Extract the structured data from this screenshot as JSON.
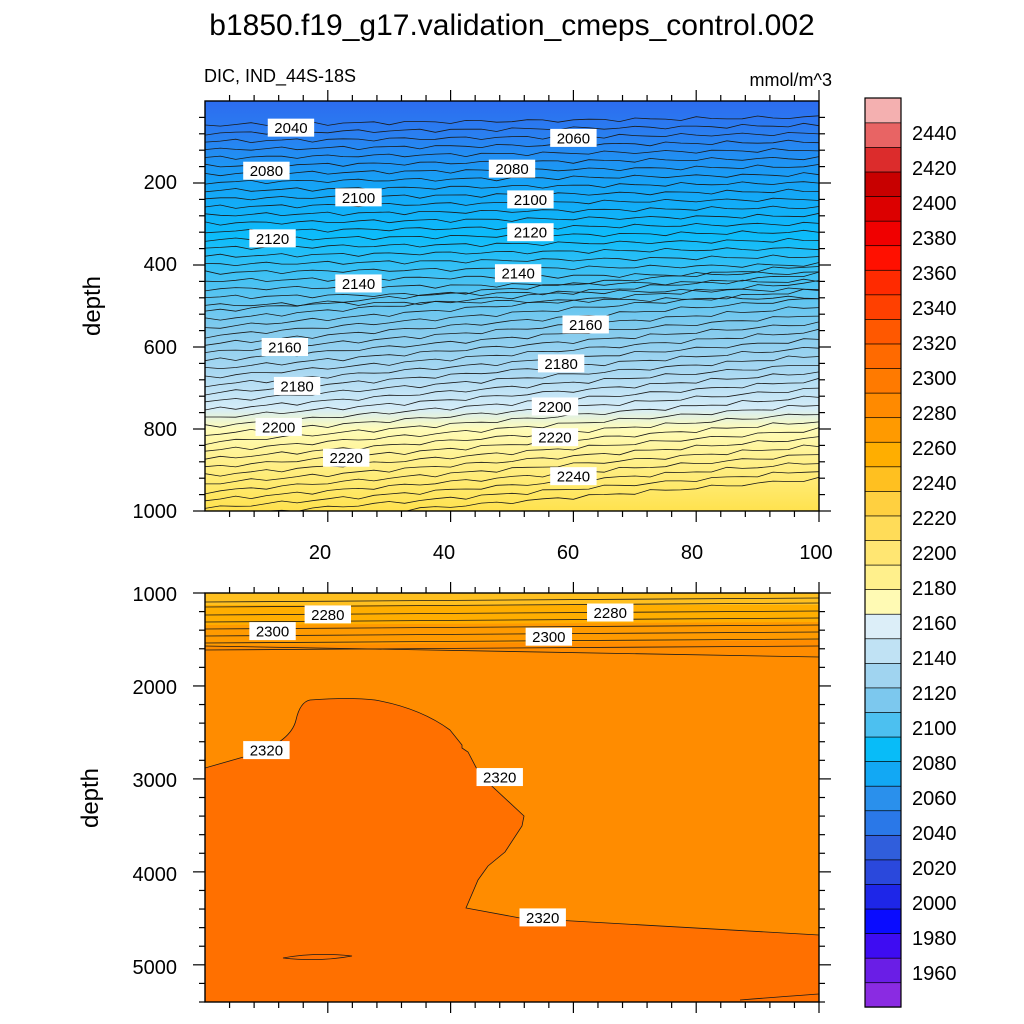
{
  "chart_data": {
    "type": "heatmap",
    "title": "b1850.f19_g17.validation_cmeps_control.002",
    "variable_label": "DIC, IND_44S-18S",
    "units_label": "mmol/m^3",
    "colorbar": {
      "levels": [
        1960,
        1980,
        2000,
        2020,
        2040,
        2060,
        2080,
        2100,
        2120,
        2140,
        2160,
        2180,
        2200,
        2220,
        2240,
        2260,
        2280,
        2300,
        2320,
        2340,
        2360,
        2380,
        2400,
        2420,
        2440
      ],
      "label_values": [
        "1960",
        "1980",
        "2000",
        "2020",
        "2040",
        "2060",
        "2080",
        "2100",
        "2120",
        "2140",
        "2160",
        "2180",
        "2200",
        "2220",
        "2240",
        "2260",
        "2280",
        "2300",
        "2320",
        "2340",
        "2360",
        "2380",
        "2400",
        "2420",
        "2440"
      ],
      "colors": [
        "#8a2be2",
        "#6a1ee6",
        "#3e0cf2",
        "#0a0cff",
        "#1e26e8",
        "#2a48dc",
        "#305edc",
        "#2a78e8",
        "#2a90ec",
        "#12a8f4",
        "#08bcf8",
        "#4cc0f0",
        "#7cc8ee",
        "#a0d4f0",
        "#c0e2f4",
        "#dceef8",
        "#fffab4",
        "#fff08c",
        "#ffe672",
        "#ffdc58",
        "#ffd040",
        "#ffc020",
        "#ffae00",
        "#ff9a00",
        "#ff8a00",
        "#ff7a00",
        "#ff6a00",
        "#ff5800",
        "#ff4000",
        "#ff2a00",
        "#ff1000",
        "#f00000",
        "#dc0000",
        "#c80000",
        "#dc2c2c",
        "#e86464",
        "#f4b0b0"
      ]
    },
    "panels": [
      {
        "name": "upper",
        "ylabel": "depth",
        "xlim": [
          0,
          100
        ],
        "ylim": [
          0,
          1000
        ],
        "y_reversed": true,
        "x_ticks": [
          "20",
          "40",
          "60",
          "80",
          "100"
        ],
        "y_ticks": [
          "200",
          "400",
          "600",
          "800",
          "1000"
        ],
        "contour_labels": [
          {
            "text": "2040",
            "x": 14,
            "y": 65
          },
          {
            "text": "2060",
            "x": 60,
            "y": 90
          },
          {
            "text": "2080",
            "x": 10,
            "y": 170
          },
          {
            "text": "2080",
            "x": 50,
            "y": 165
          },
          {
            "text": "2100",
            "x": 25,
            "y": 235
          },
          {
            "text": "2100",
            "x": 53,
            "y": 240
          },
          {
            "text": "2120",
            "x": 11,
            "y": 335
          },
          {
            "text": "2120",
            "x": 53,
            "y": 320
          },
          {
            "text": "2140",
            "x": 25,
            "y": 445
          },
          {
            "text": "2140",
            "x": 51,
            "y": 420
          },
          {
            "text": "2160",
            "x": 13,
            "y": 600
          },
          {
            "text": "2160",
            "x": 62,
            "y": 545
          },
          {
            "text": "2180",
            "x": 15,
            "y": 695
          },
          {
            "text": "2180",
            "x": 58,
            "y": 640
          },
          {
            "text": "2200",
            "x": 12,
            "y": 795
          },
          {
            "text": "2200",
            "x": 57,
            "y": 745
          },
          {
            "text": "2220",
            "x": 23,
            "y": 870
          },
          {
            "text": "2220",
            "x": 57,
            "y": 820
          },
          {
            "text": "2240",
            "x": 60,
            "y": 915
          }
        ]
      },
      {
        "name": "lower",
        "ylabel": "depth",
        "xlim": [
          0,
          100
        ],
        "ylim": [
          1000,
          5400
        ],
        "y_reversed": true,
        "x_ticks": [],
        "y_ticks": [
          "1000",
          "2000",
          "3000",
          "4000",
          "5000"
        ],
        "contour_labels": [
          {
            "text": "2280",
            "x": 20,
            "y": 1230
          },
          {
            "text": "2280",
            "x": 66,
            "y": 1210
          },
          {
            "text": "2300",
            "x": 11,
            "y": 1410
          },
          {
            "text": "2300",
            "x": 56,
            "y": 1470
          },
          {
            "text": "2320",
            "x": 10,
            "y": 2690
          },
          {
            "text": "2320",
            "x": 48,
            "y": 2980
          },
          {
            "text": "2320",
            "x": 55,
            "y": 4490
          }
        ]
      }
    ]
  }
}
